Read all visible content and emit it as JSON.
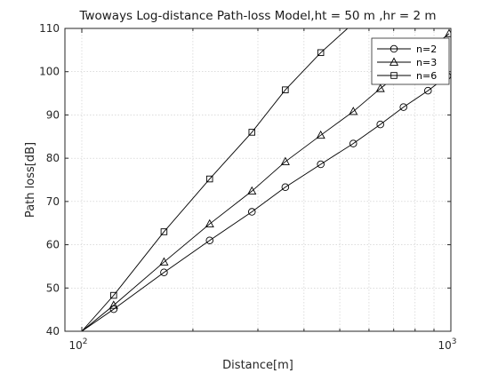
{
  "chart_data": {
    "type": "line",
    "title": "Twoways Log-distance Path-loss Model,ht = 50 m ,hr = 2 m",
    "xlabel": "Distance[m]",
    "ylabel": "Path loss[dB]",
    "xscale": "log",
    "xlim": [
      90,
      1000
    ],
    "ylim": [
      40,
      110
    ],
    "xticks": [
      100,
      1000
    ],
    "xtick_labels": [
      {
        "base": "10",
        "exp": "2"
      },
      {
        "base": "10",
        "exp": "3"
      }
    ],
    "yticks": [
      40,
      50,
      60,
      70,
      80,
      90,
      100,
      110
    ],
    "grid": true,
    "legend_position": "top-right",
    "series": [
      {
        "name": "n=2",
        "marker": "circle",
        "x": [
          100,
          122,
          167,
          222,
          289,
          356,
          444,
          544,
          644,
          744,
          867,
          978
        ],
        "y": [
          40.0,
          45.1,
          53.6,
          61.0,
          67.6,
          73.3,
          78.6,
          83.4,
          87.8,
          91.8,
          95.6,
          99.0
        ]
      },
      {
        "name": "n=3",
        "marker": "triangle",
        "x": [
          100,
          122,
          167,
          222,
          289,
          356,
          444,
          544,
          644,
          989
        ],
        "y": [
          40.0,
          46.0,
          56.0,
          64.8,
          72.4,
          79.2,
          85.3,
          90.8,
          96.1,
          108.8
        ]
      },
      {
        "name": "n=6",
        "marker": "square",
        "x": [
          100,
          122,
          167,
          222,
          289,
          356,
          444
        ],
        "y": [
          40.0,
          48.3,
          63.0,
          75.2,
          86.0,
          95.8,
          104.4
        ],
        "line_extends_to": {
          "x": 525,
          "y": 110
        }
      }
    ]
  }
}
